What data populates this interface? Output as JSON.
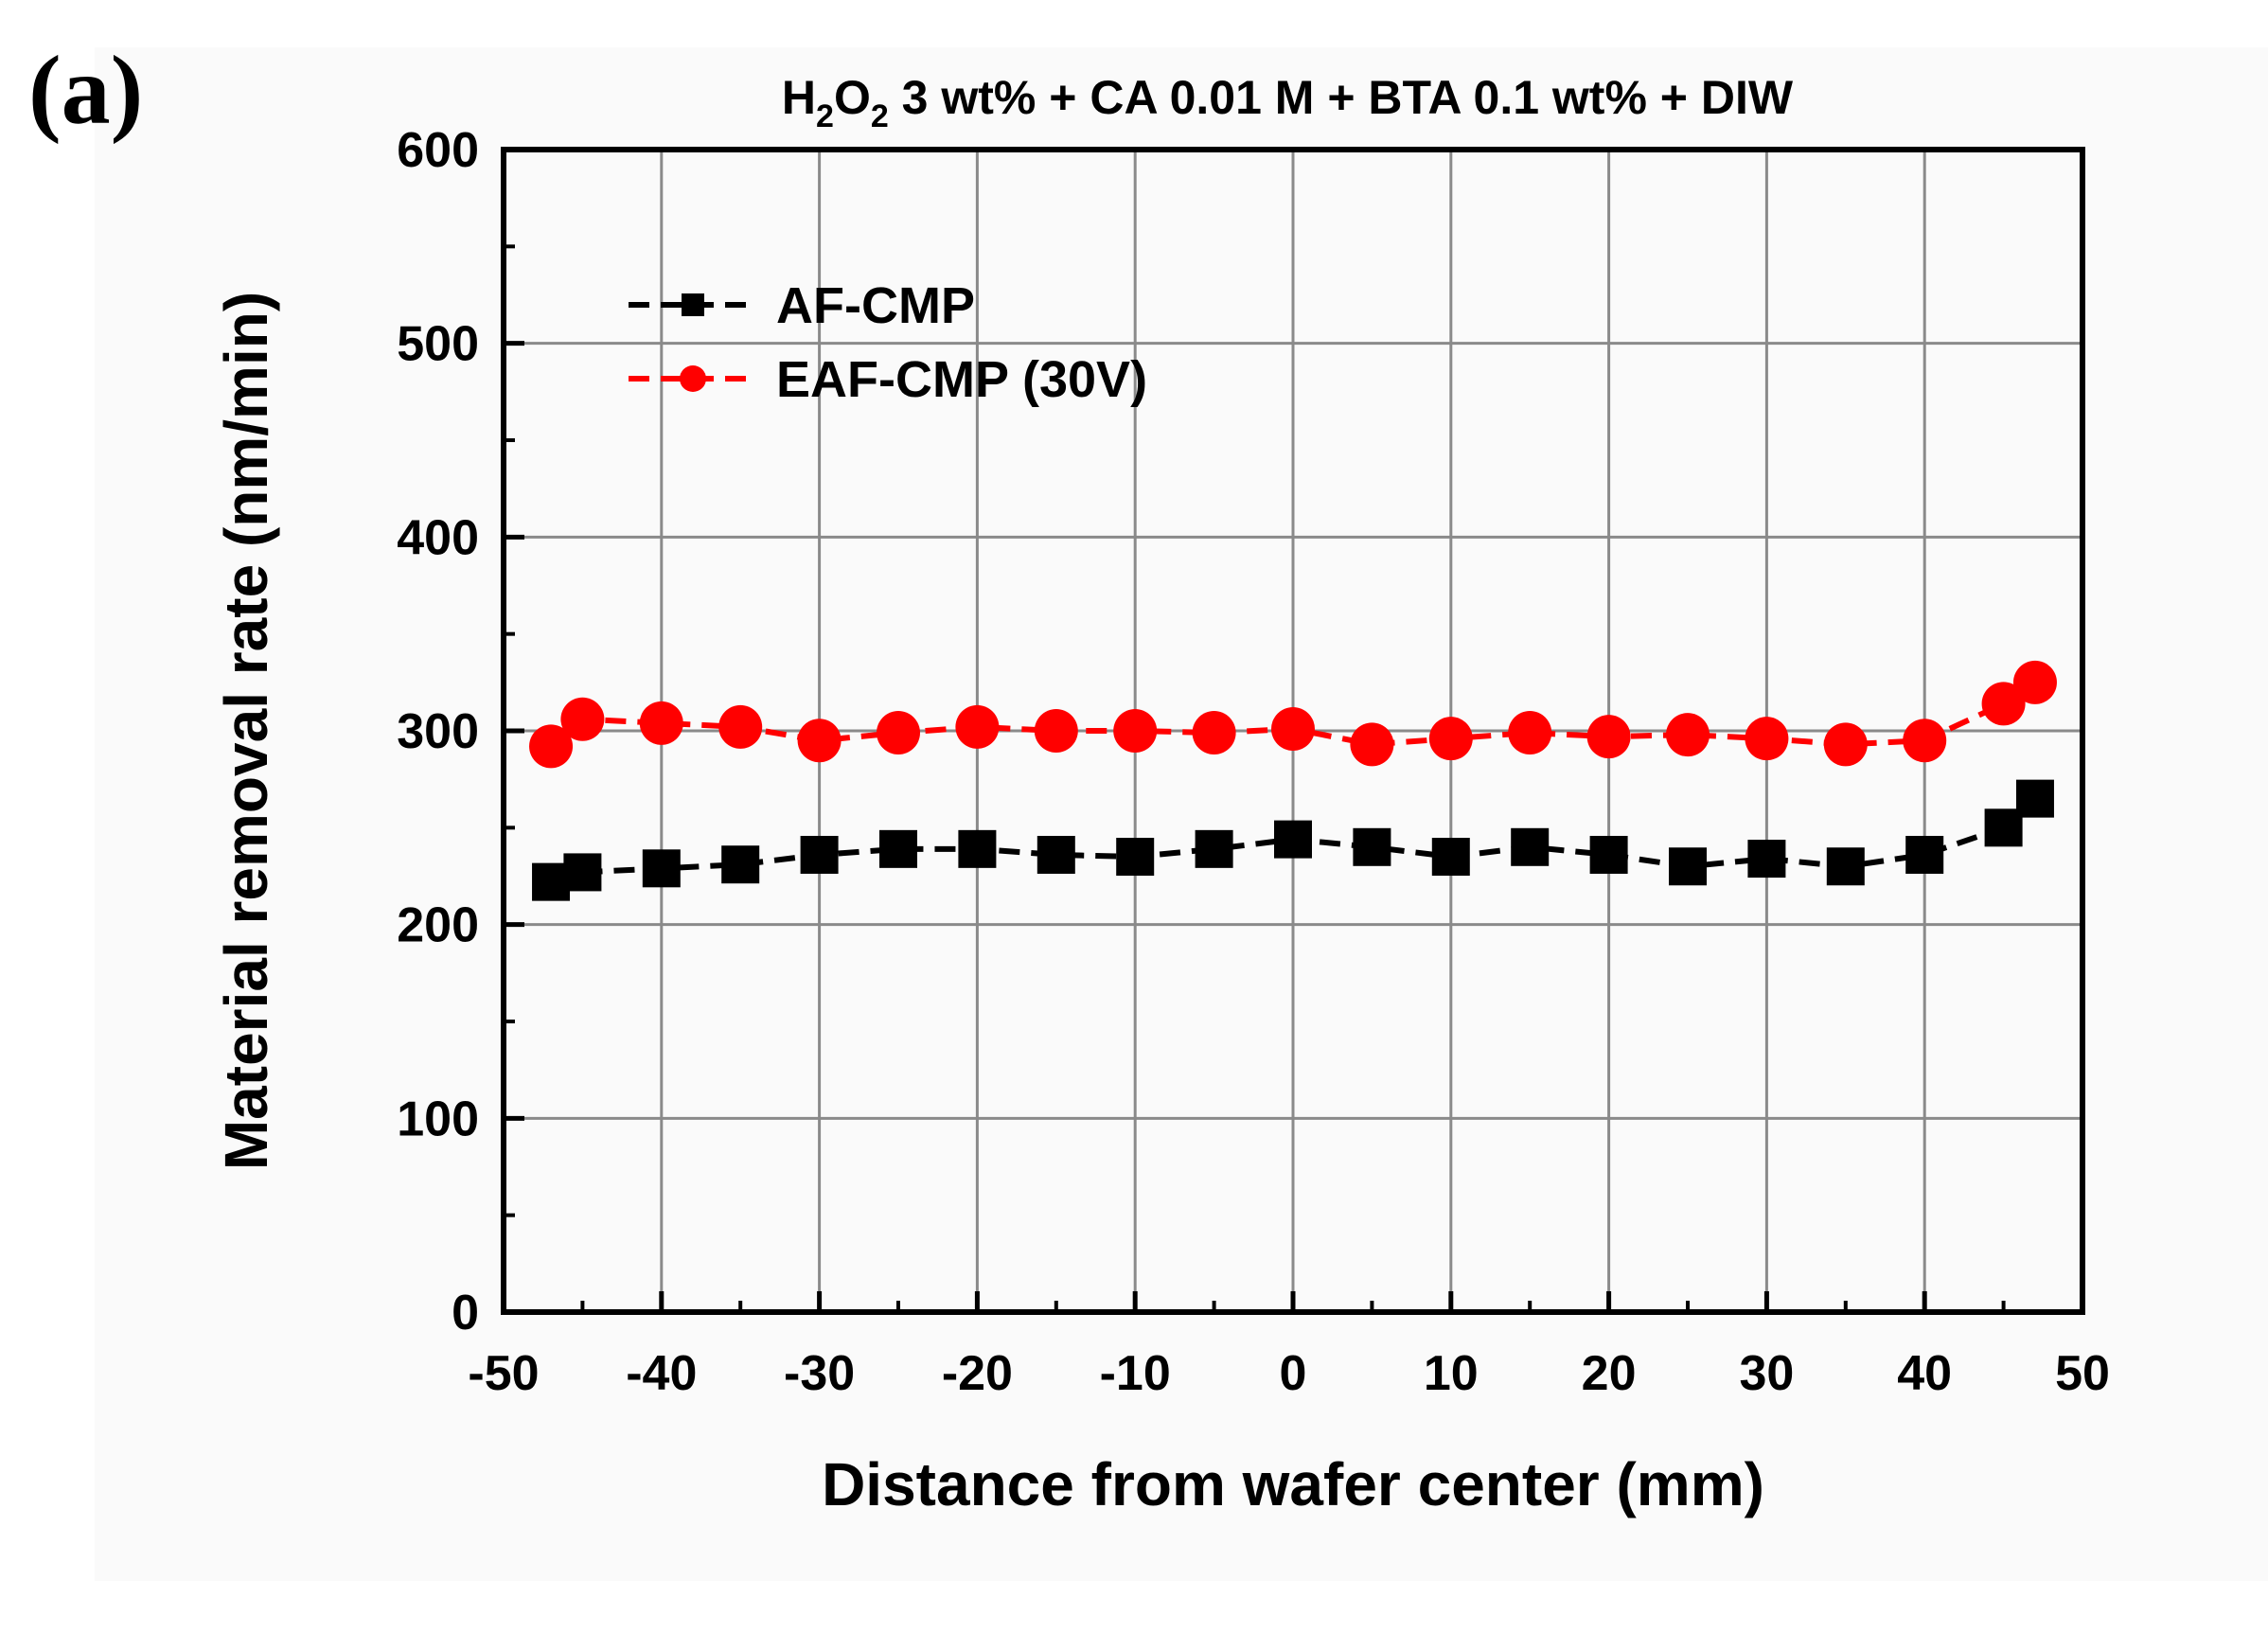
{
  "panel_label": "(a)",
  "title_parts": [
    "H",
    "2",
    "O",
    "2",
    " 3 wt% + CA 0.01 M + BTA 0.1 wt% + DIW"
  ],
  "chart_data": {
    "type": "line",
    "title": "H2O2 3 wt% + CA 0.01 M + BTA 0.1 wt% + DIW",
    "xlabel": "Distance from wafer center (mm)",
    "ylabel": "Material removal rate (nm/min)",
    "xlim": [
      -50,
      50
    ],
    "ylim": [
      0,
      600
    ],
    "xticks": [
      -50,
      -40,
      -30,
      -20,
      -10,
      0,
      10,
      20,
      30,
      40,
      50
    ],
    "yticks": [
      0,
      100,
      200,
      300,
      400,
      500,
      600
    ],
    "grid": true,
    "legend_position": "top-left",
    "x": [
      -47,
      -45,
      -40,
      -35,
      -30,
      -25,
      -20,
      -15,
      -10,
      -5,
      0,
      5,
      10,
      15,
      20,
      25,
      30,
      35,
      40,
      45,
      47
    ],
    "series": [
      {
        "name": "AF-CMP",
        "color": "#000000",
        "marker": "square",
        "line_style": "dashed",
        "values": [
          222,
          227,
          229,
          231,
          236,
          239,
          239,
          236,
          235,
          239,
          244,
          240,
          235,
          240,
          236,
          230,
          234,
          230,
          236,
          250,
          265
        ]
      },
      {
        "name": "EAF-CMP (30V)",
        "color": "#ff0000",
        "marker": "circle",
        "line_style": "dashed",
        "values": [
          292,
          306,
          304,
          302,
          295,
          299,
          302,
          300,
          300,
          299,
          301,
          293,
          296,
          299,
          297,
          298,
          296,
          293,
          295,
          314,
          325
        ]
      }
    ]
  }
}
